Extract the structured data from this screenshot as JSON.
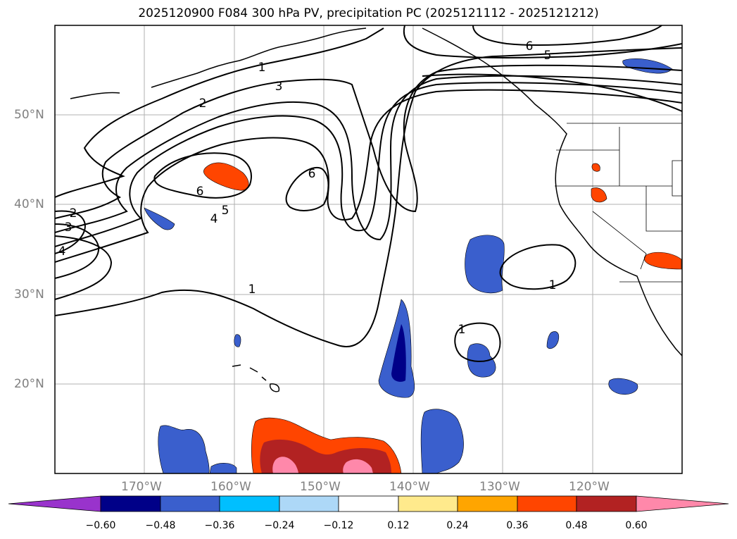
{
  "title": "2025120900 F084 300 hPa PV, precipitation PC (2025121112 - 2025121212)",
  "lat_labels": [
    "50°N",
    "40°N",
    "30°N",
    "20°N"
  ],
  "lon_labels": [
    "170°W",
    "160°W",
    "150°W",
    "140°W",
    "130°W",
    "120°W"
  ],
  "contour_labels": [
    "1",
    "2",
    "3",
    "4",
    "5",
    "6",
    "6",
    "6",
    "5",
    "2",
    "3",
    "4",
    "1",
    "1",
    "1"
  ],
  "colorbar": {
    "ticks": [
      "−0.60",
      "−0.48",
      "−0.36",
      "−0.24",
      "−0.12",
      "0.12",
      "0.24",
      "0.36",
      "0.48",
      "0.60"
    ],
    "colors": [
      "#9933cc",
      "#000088",
      "#3a5fcd",
      "#00bfff",
      "#add8f7",
      "#ffffff",
      "#ffea8c",
      "#ffa500",
      "#ff4500",
      "#b22222",
      "#ff88aa"
    ]
  }
}
